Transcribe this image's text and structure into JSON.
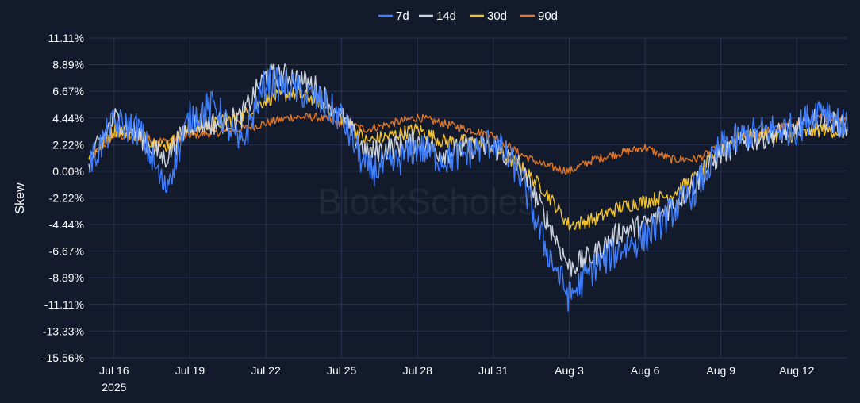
{
  "watermark": "BlockScholes",
  "colors": {
    "background": "#121a2b",
    "grid": "#2a3550",
    "text": "#ffffff"
  },
  "chart_data": {
    "type": "line",
    "title": "",
    "xlabel": "",
    "ylabel": "Skew",
    "ylim": [
      -15.56,
      11.11
    ],
    "yticks": [
      "11.11%",
      "8.89%",
      "6.67%",
      "4.44%",
      "2.22%",
      "0.00%",
      "-2.22%",
      "-4.44%",
      "-6.67%",
      "-8.89%",
      "-11.11%",
      "-13.33%",
      "-15.56%"
    ],
    "ytick_values": [
      11.11,
      8.89,
      6.67,
      4.44,
      2.22,
      0.0,
      -2.22,
      -4.44,
      -6.67,
      -8.89,
      -11.11,
      -13.33,
      -15.56
    ],
    "xlim": [
      "2025-07-15",
      "2025-08-14"
    ],
    "xticks": [
      {
        "date": "2025-07-16",
        "label": "Jul 16",
        "sublabel": "2025"
      },
      {
        "date": "2025-07-19",
        "label": "Jul 19",
        "sublabel": ""
      },
      {
        "date": "2025-07-22",
        "label": "Jul 22",
        "sublabel": ""
      },
      {
        "date": "2025-07-25",
        "label": "Jul 25",
        "sublabel": ""
      },
      {
        "date": "2025-07-28",
        "label": "Jul 28",
        "sublabel": ""
      },
      {
        "date": "2025-07-31",
        "label": "Jul 31",
        "sublabel": ""
      },
      {
        "date": "2025-08-03",
        "label": "Aug 3",
        "sublabel": ""
      },
      {
        "date": "2025-08-06",
        "label": "Aug 6",
        "sublabel": ""
      },
      {
        "date": "2025-08-09",
        "label": "Aug 9",
        "sublabel": ""
      },
      {
        "date": "2025-08-12",
        "label": "Aug 12",
        "sublabel": ""
      }
    ],
    "legend_position": "top-center",
    "grid": true,
    "x": [
      "2025-07-15",
      "2025-07-16",
      "2025-07-17",
      "2025-07-18",
      "2025-07-19",
      "2025-07-20",
      "2025-07-21",
      "2025-07-22",
      "2025-07-23",
      "2025-07-24",
      "2025-07-25",
      "2025-07-26",
      "2025-07-27",
      "2025-07-28",
      "2025-07-29",
      "2025-07-30",
      "2025-07-31",
      "2025-08-01",
      "2025-08-02",
      "2025-08-03",
      "2025-08-04",
      "2025-08-05",
      "2025-08-06",
      "2025-08-07",
      "2025-08-08",
      "2025-08-09",
      "2025-08-10",
      "2025-08-11",
      "2025-08-12",
      "2025-08-13",
      "2025-08-14"
    ],
    "series": [
      {
        "name": "7d",
        "color": "#3f7fff",
        "values": [
          0.5,
          4.0,
          3.5,
          -1.5,
          4.5,
          5.5,
          2.0,
          7.5,
          7.0,
          6.0,
          4.5,
          0.0,
          0.5,
          2.0,
          1.0,
          1.5,
          2.5,
          0.0,
          -6.0,
          -10.5,
          -8.0,
          -6.5,
          -5.5,
          -3.5,
          -1.5,
          2.0,
          3.0,
          3.5,
          3.5,
          5.5,
          3.5
        ]
      },
      {
        "name": "14d",
        "color": "#cdd3de",
        "values": [
          0.7,
          4.5,
          3.0,
          1.0,
          4.0,
          4.0,
          4.5,
          8.0,
          8.0,
          7.0,
          4.5,
          1.5,
          2.0,
          2.5,
          1.5,
          2.0,
          2.0,
          0.5,
          -3.5,
          -8.0,
          -7.0,
          -5.0,
          -4.5,
          -3.0,
          -1.0,
          1.5,
          2.5,
          3.0,
          3.5,
          4.5,
          3.5
        ]
      },
      {
        "name": "30d",
        "color": "#f2c12e",
        "values": [
          1.0,
          3.5,
          3.0,
          2.0,
          3.5,
          4.0,
          4.5,
          6.0,
          6.5,
          6.0,
          4.5,
          2.5,
          3.0,
          3.5,
          2.5,
          2.5,
          2.0,
          0.5,
          -1.5,
          -4.5,
          -4.0,
          -3.0,
          -2.5,
          -2.0,
          -0.5,
          2.0,
          3.0,
          3.0,
          3.0,
          3.5,
          3.2
        ]
      },
      {
        "name": "90d",
        "color": "#e07626",
        "values": [
          1.0,
          3.0,
          2.8,
          2.5,
          3.0,
          3.2,
          3.5,
          4.0,
          4.5,
          4.5,
          4.0,
          3.5,
          4.0,
          4.5,
          4.0,
          3.5,
          3.0,
          1.5,
          0.5,
          0.0,
          1.0,
          1.5,
          2.0,
          1.0,
          1.0,
          2.0,
          3.0,
          3.5,
          4.0,
          4.5,
          4.5
        ]
      }
    ]
  }
}
